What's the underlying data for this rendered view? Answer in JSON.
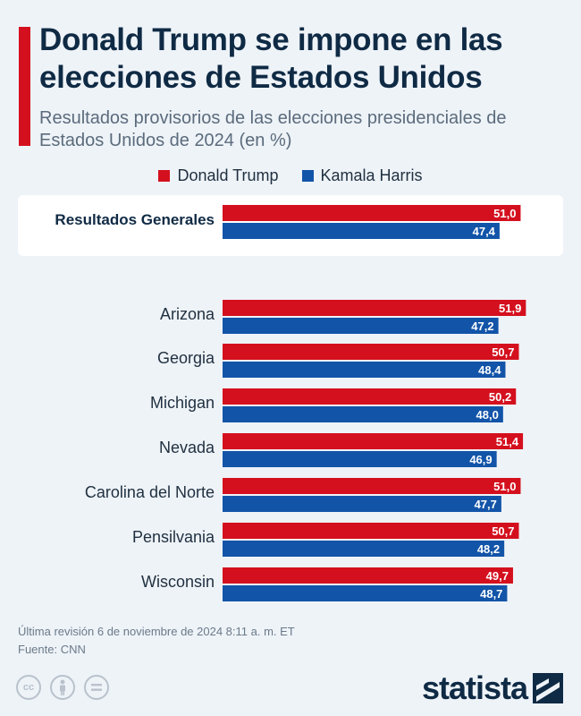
{
  "title": "Donald Trump se impone en las elecciones de Estados Unidos",
  "subtitle": "Resultados provisorios de las elecciones presidenciales de Estados Unidos de 2024 (en %)",
  "footer": {
    "revision": "Última revisión 6 de noviembre de 2024 8:11 a. m. ET",
    "source": "Fuente: CNN"
  },
  "brand": {
    "name": "statista"
  },
  "colors": {
    "trump": "#d4101e",
    "harris": "#1254a8",
    "title": "#0f2a44",
    "background": "#eef3f8"
  },
  "chart_data": {
    "type": "bar",
    "orientation": "horizontal",
    "categories": [
      "Resultados Generales",
      "Arizona",
      "Georgia",
      "Michigan",
      "Nevada",
      "Carolina del Norte",
      "Pensilvania",
      "Wisconsin"
    ],
    "series": [
      {
        "name": "Donald Trump",
        "color": "#d4101e",
        "values": [
          51.0,
          51.9,
          50.7,
          50.2,
          51.4,
          51.0,
          50.7,
          49.7
        ],
        "labels": [
          "51,0",
          "51,9",
          "50,7",
          "50,2",
          "51,4",
          "51,0",
          "50,7",
          "49,7"
        ]
      },
      {
        "name": "Kamala Harris",
        "color": "#1254a8",
        "values": [
          47.4,
          47.2,
          48.4,
          48.0,
          46.9,
          47.7,
          48.2,
          48.7
        ],
        "labels": [
          "47,4",
          "47,2",
          "48,4",
          "48,0",
          "46,9",
          "47,7",
          "48,2",
          "48,7"
        ]
      }
    ],
    "xlim": [
      0,
      52
    ],
    "legend": "top-center",
    "grid": false
  }
}
